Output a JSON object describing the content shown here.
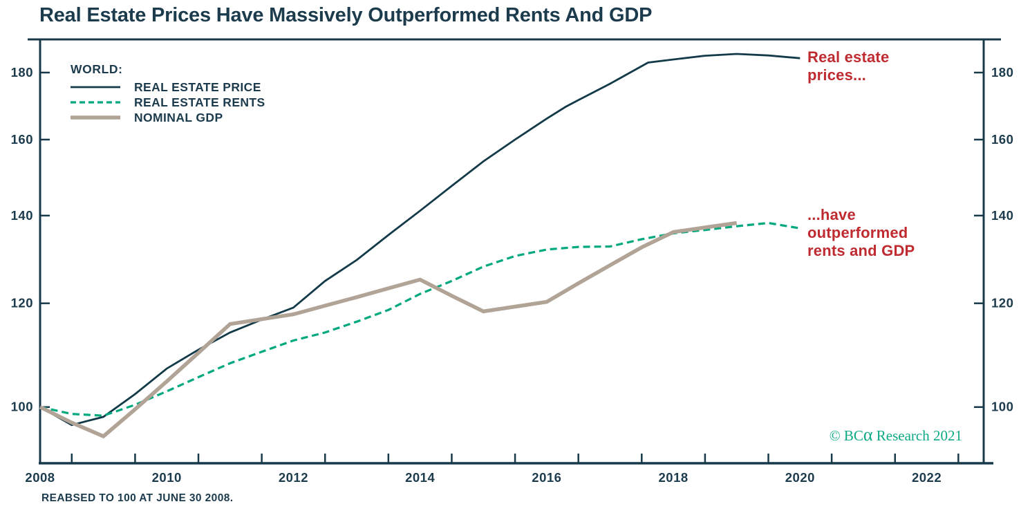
{
  "title": "Real Estate Prices Have Massively Outperformed Rents And GDP",
  "legend": {
    "title": "WORLD:"
  },
  "annotations": [
    {
      "text": "Real estate\nprices..."
    },
    {
      "text": "...have\noutperformed\nrents and GDP"
    }
  ],
  "credit": {
    "prefix": "© BC",
    "alpha": "α",
    "suffix": " Research 2021"
  },
  "footnote": "REABSED TO 100 AT JUNE 30 2008.",
  "colors": {
    "ink": "#1c3b4d",
    "axis": "#17394a",
    "price_line": "#123a49",
    "rents_line": "#00a87e",
    "gdp_line": "#b1a396",
    "annotation_red": "#bf2b30",
    "credit_green": "#0ca985"
  },
  "chart_data": {
    "type": "line",
    "title": "Real Estate Prices Have Massively Outperformed Rents And GDP",
    "xlabel": "",
    "ylabel": "Index (rebased to 100 at June 30 2008)",
    "x_axis": {
      "domain": [
        2008,
        2022.9
      ],
      "tick_years": [
        2008.5,
        2009.5,
        2010.5,
        2011.5,
        2012.5,
        2013.5,
        2014.5,
        2015.5,
        2016.5,
        2017.5,
        2018.5,
        2019.5,
        2020.5,
        2021.5,
        2022.5
      ],
      "labels": [
        2008,
        2010,
        2012,
        2014,
        2016,
        2018,
        2020,
        2022
      ]
    },
    "y_axis": {
      "scale": "log",
      "domain": [
        90.6,
        190.8
      ],
      "ticks": [
        100,
        120,
        140,
        160,
        180
      ],
      "sides": [
        "left",
        "right"
      ]
    },
    "grid": false,
    "legend_position": "top-left",
    "series": [
      {
        "name": "REAL ESTATE PRICE",
        "style": "solid",
        "color": "#123a49",
        "width": 2.8,
        "points": [
          [
            2008,
            100
          ],
          [
            2008.5,
            96.9
          ],
          [
            2009,
            98.3
          ],
          [
            2009.5,
            102.3
          ],
          [
            2010,
            107
          ],
          [
            2010.5,
            110.6
          ],
          [
            2011,
            114
          ],
          [
            2011.5,
            116.6
          ],
          [
            2012,
            119.1
          ],
          [
            2012.5,
            124.8
          ],
          [
            2013,
            129.5
          ],
          [
            2013.5,
            135.3
          ],
          [
            2014,
            141.2
          ],
          [
            2014.5,
            147.5
          ],
          [
            2015,
            154
          ],
          [
            2015.5,
            160
          ],
          [
            2016,
            166
          ],
          [
            2016.3,
            169.5
          ],
          [
            2016.5,
            171.5
          ],
          [
            2017,
            176.5
          ],
          [
            2017.6,
            183.2
          ],
          [
            2018,
            184.2
          ],
          [
            2018.5,
            185.4
          ],
          [
            2019,
            186
          ],
          [
            2019.5,
            185.5
          ],
          [
            2020,
            184.6
          ]
        ]
      },
      {
        "name": "REAL ESTATE RENTS",
        "style": "dashed",
        "color": "#00a87e",
        "width": 3.2,
        "points": [
          [
            2008,
            100
          ],
          [
            2008.5,
            98.8
          ],
          [
            2009,
            98.5
          ],
          [
            2009.5,
            100.4
          ],
          [
            2010,
            102.8
          ],
          [
            2010.5,
            105.4
          ],
          [
            2011,
            108
          ],
          [
            2011.5,
            110.2
          ],
          [
            2012,
            112.4
          ],
          [
            2012.5,
            114
          ],
          [
            2013,
            116.2
          ],
          [
            2013.5,
            118.6
          ],
          [
            2014,
            122
          ],
          [
            2014.5,
            124.8
          ],
          [
            2015,
            128
          ],
          [
            2015.5,
            130.4
          ],
          [
            2016,
            131.9
          ],
          [
            2016.5,
            132.5
          ],
          [
            2017,
            132.6
          ],
          [
            2017.5,
            134.3
          ],
          [
            2018,
            135.7
          ],
          [
            2018.5,
            136.5
          ],
          [
            2019,
            137.4
          ],
          [
            2019.5,
            138.2
          ],
          [
            2020,
            136.9
          ]
        ]
      },
      {
        "name": "NOMINAL GDP",
        "style": "solid",
        "color": "#b1a396",
        "width": 5.5,
        "points": [
          [
            2008,
            100
          ],
          [
            2008.5,
            97.3
          ],
          [
            2009,
            95
          ],
          [
            2009.5,
            99.6
          ],
          [
            2010,
            104.6
          ],
          [
            2010.5,
            110
          ],
          [
            2011,
            115.7
          ],
          [
            2011.5,
            116.7
          ],
          [
            2012,
            117.7
          ],
          [
            2012.5,
            119.5
          ],
          [
            2013,
            121.3
          ],
          [
            2013.5,
            123.2
          ],
          [
            2014,
            125.1
          ],
          [
            2014.5,
            121.6
          ],
          [
            2015,
            118.3
          ],
          [
            2015.5,
            119.3
          ],
          [
            2016,
            120.3
          ],
          [
            2016.5,
            124.3
          ],
          [
            2017,
            128.3
          ],
          [
            2017.5,
            132.4
          ],
          [
            2018,
            136
          ],
          [
            2018.5,
            137.1
          ],
          [
            2019,
            138.2
          ]
        ]
      }
    ]
  }
}
